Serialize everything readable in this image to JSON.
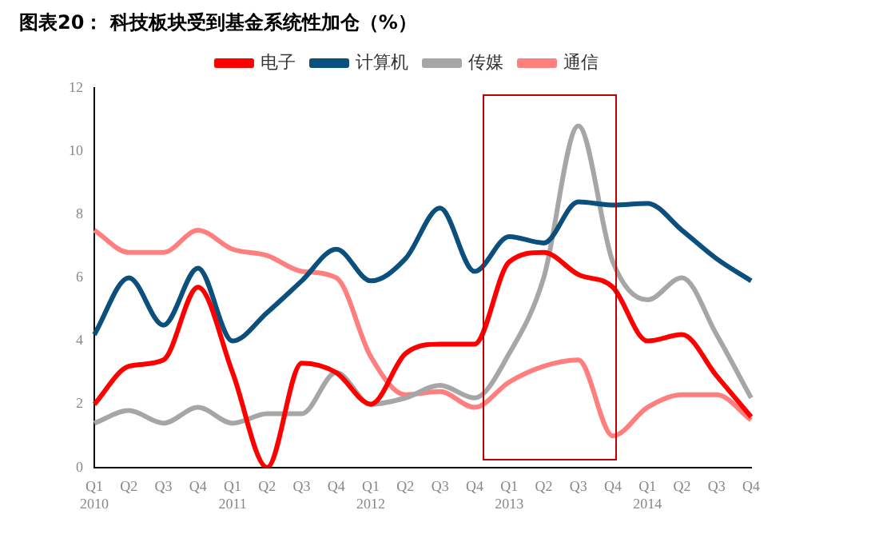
{
  "chart_data": {
    "type": "line",
    "title": "图表20： 科技板块受到基金系统性加仓（%）",
    "categories": [
      "Q1\n2010",
      "Q2",
      "Q3",
      "Q4",
      "Q1\n2011",
      "Q2",
      "Q3",
      "Q4",
      "Q1\n2012",
      "Q2",
      "Q3",
      "Q4",
      "Q1\n2013",
      "Q2",
      "Q3",
      "Q4",
      "Q1\n2014",
      "Q2",
      "Q3",
      "Q4"
    ],
    "series": [
      {
        "name": "电子",
        "color": "#ff0000",
        "values": [
          2.0,
          3.2,
          3.4,
          5.7,
          3.0,
          0,
          3.3,
          3.0,
          2.0,
          3.6,
          3.9,
          3.9,
          6.5,
          6.8,
          6.1,
          5.7,
          4.0,
          4.2,
          2.9,
          1.6
        ]
      },
      {
        "name": "计算机",
        "color": "#0b4f7c",
        "values": [
          4.2,
          6.0,
          4.5,
          6.3,
          4.0,
          4.9,
          5.9,
          6.9,
          5.9,
          6.6,
          8.2,
          6.2,
          7.3,
          7.1,
          8.4,
          8.3,
          8.35,
          7.5,
          6.6,
          5.9
        ]
      },
      {
        "name": "传媒",
        "color": "#a6a6a6",
        "values": [
          1.4,
          1.8,
          1.4,
          1.9,
          1.4,
          1.7,
          1.7,
          3.0,
          2.0,
          2.2,
          2.6,
          2.2,
          3.6,
          6.0,
          10.8,
          6.5,
          5.3,
          6.0,
          4.2,
          2.2
        ]
      },
      {
        "name": "通信",
        "color": "#ff7f7f",
        "values": [
          7.5,
          6.8,
          6.8,
          7.5,
          6.9,
          6.7,
          6.2,
          6.0,
          3.5,
          2.3,
          2.4,
          1.9,
          2.7,
          3.2,
          3.4,
          1.0,
          1.9,
          2.3,
          2.3,
          1.5
        ]
      }
    ],
    "ylim": [
      0,
      12
    ],
    "yticks": [
      0,
      2,
      4,
      6,
      8,
      10,
      12
    ],
    "grid": false,
    "legend": "top",
    "marker": "none",
    "line_style": "solid"
  }
}
